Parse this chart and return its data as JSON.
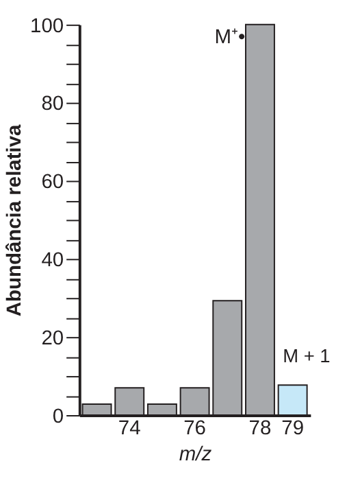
{
  "chart_data": {
    "type": "bar",
    "xlabel": "m/z",
    "ylabel": "Abundância relativa",
    "categories": [
      null,
      "74",
      null,
      "76",
      null,
      "78",
      "79"
    ],
    "values": [
      2.8,
      7.0,
      2.8,
      7.0,
      29.3,
      100,
      7.7
    ],
    "colors": [
      "#a7a9ac",
      "#a7a9ac",
      "#a7a9ac",
      "#a7a9ac",
      "#a7a9ac",
      "#a7a9ac",
      "#c6e8f8"
    ],
    "ylim": [
      0,
      100
    ],
    "yticks": [
      0,
      {
        "value": 5,
        "label": null
      },
      {
        "value": 10,
        "label": null
      },
      {
        "value": 15,
        "label": null
      },
      20,
      {
        "value": 25,
        "label": null
      },
      {
        "value": 30,
        "label": null
      },
      {
        "value": 35,
        "label": null
      },
      40,
      {
        "value": 45,
        "label": null
      },
      {
        "value": 50,
        "label": null
      },
      {
        "value": 55,
        "label": null
      },
      60,
      {
        "value": 65,
        "label": null
      },
      {
        "value": 70,
        "label": null
      },
      {
        "value": 75,
        "label": null
      },
      80,
      {
        "value": 85,
        "label": null
      },
      {
        "value": 90,
        "label": null
      },
      {
        "value": 95,
        "label": null
      },
      100
    ],
    "grid": false,
    "annotations": [
      {
        "text": "M⁺•",
        "x": "78",
        "y": 100
      },
      {
        "text": "M + 1",
        "x": "79",
        "y": 7.7
      }
    ]
  }
}
